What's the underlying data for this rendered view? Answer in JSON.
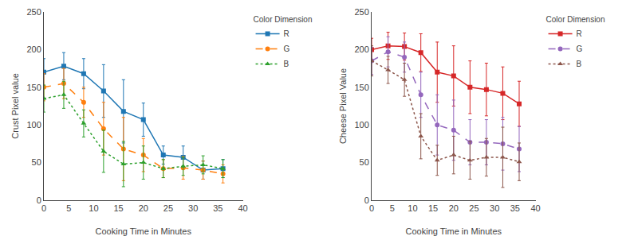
{
  "chart_data": [
    {
      "type": "line",
      "x": [
        0,
        4,
        8,
        12,
        16,
        20,
        24,
        28,
        32,
        36
      ],
      "xlim": [
        0,
        40
      ],
      "xticks": [
        0,
        5,
        10,
        15,
        20,
        25,
        30,
        35,
        40
      ],
      "ylim": [
        0,
        250
      ],
      "yticks": [
        0,
        50,
        100,
        150,
        200,
        250
      ],
      "xlabel": "Cooking Time in Minutes",
      "ylabel": "Crust Pixel value",
      "legend": "upper right",
      "legend_title": "Color Dimension",
      "grid": false,
      "series": [
        {
          "name": "R",
          "values": [
            170,
            178,
            168,
            145,
            118,
            107,
            60,
            57,
            40,
            42
          ],
          "error": [
            18,
            18,
            20,
            35,
            42,
            22,
            12,
            15,
            12,
            12
          ],
          "marker": "square",
          "line_style": "solid"
        },
        {
          "name": "G",
          "values": [
            150,
            155,
            130,
            95,
            68,
            60,
            42,
            43,
            40,
            35
          ],
          "error": [
            18,
            20,
            20,
            35,
            42,
            22,
            12,
            15,
            12,
            12
          ],
          "marker": "circle",
          "line_style": "dashed"
        },
        {
          "name": "B",
          "values": [
            135,
            140,
            102,
            65,
            48,
            50,
            42,
            45,
            47,
            42
          ],
          "error": [
            18,
            18,
            18,
            28,
            30,
            22,
            12,
            12,
            12,
            12
          ],
          "marker": "triangle",
          "line_style": "dotted"
        }
      ]
    },
    {
      "type": "line",
      "x": [
        0,
        4,
        8,
        12,
        16,
        20,
        24,
        28,
        32,
        36
      ],
      "xlim": [
        0,
        40
      ],
      "xticks": [
        0,
        5,
        10,
        15,
        20,
        25,
        30,
        35,
        40
      ],
      "ylim": [
        0,
        250
      ],
      "yticks": [
        0,
        50,
        100,
        150,
        200,
        250
      ],
      "xlabel": "Cooking Time in Minutes",
      "ylabel": "Cheese Pixel Value",
      "legend": "upper right",
      "legend_title": "Color Dimension",
      "grid": false,
      "series": [
        {
          "name": "R",
          "values": [
            200,
            205,
            204,
            196,
            170,
            165,
            150,
            147,
            142,
            128
          ],
          "error": [
            15,
            18,
            18,
            25,
            40,
            40,
            35,
            35,
            35,
            30
          ],
          "marker": "square",
          "line_style": "solid"
        },
        {
          "name": "G",
          "values": [
            185,
            197,
            190,
            140,
            100,
            93,
            77,
            77,
            75,
            68
          ],
          "error": [
            18,
            20,
            20,
            30,
            40,
            40,
            30,
            30,
            35,
            30
          ],
          "marker": "circle",
          "line_style": "dashed"
        },
        {
          "name": "B",
          "values": [
            185,
            173,
            160,
            85,
            53,
            60,
            53,
            57,
            57,
            51
          ],
          "error": [
            20,
            18,
            22,
            30,
            20,
            25,
            25,
            25,
            40,
            25
          ],
          "marker": "triangle",
          "line_style": "dotted"
        }
      ]
    }
  ]
}
